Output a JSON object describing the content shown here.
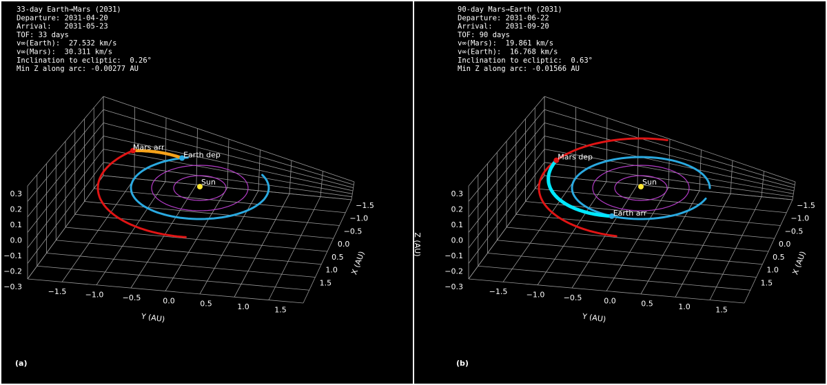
{
  "panels": [
    {
      "label": "(a)",
      "info": [
        "33-day Earth→Mars (2031)",
        "Departure: 2031-04-20",
        "Arrival:   2031-05-23",
        "TOF: 33 days",
        "v∞(Earth):  27.532 km/s",
        "v∞(Mars):  30.311 km/s",
        "Inclination to ecliptic:  0.26°",
        "Min Z along arc: -0.00277 AU"
      ],
      "markers": {
        "start": "Earth dep",
        "end": "Mars arr",
        "sun": "Sun"
      },
      "axes": {
        "x_label": "X (AU)",
        "y_label": "Y (AU)",
        "xticks": [
          "−1.5",
          "−1.0",
          "−0.5",
          "0.0",
          "0.5",
          "1.0",
          "1.5"
        ],
        "yticks": [
          "−1.5",
          "−1.0",
          "−0.5",
          "0.0",
          "0.5",
          "1.0",
          "1.5"
        ],
        "zticks": [
          "0.3",
          "0.2",
          "0.1",
          "0.0",
          "−0.1",
          "−0.2",
          "−0.3"
        ]
      }
    },
    {
      "label": "(b)",
      "info": [
        "90-day Mars→Earth (2031)",
        "Departure: 2031-06-22",
        "Arrival:   2031-09-20",
        "TOF: 90 days",
        "v∞(Mars):  19.861 km/s",
        "v∞(Earth):  16.768 km/s",
        "Inclination to ecliptic:  0.63°",
        "Min Z along arc: -0.01566 AU"
      ],
      "markers": {
        "start": "Mars dep",
        "end": "Earth arr",
        "sun": "Sun"
      },
      "axes": {
        "x_label": "X (AU)",
        "y_label": "Y (AU)",
        "z_label": "Z (AU)",
        "xticks": [
          "−1.5",
          "−1.0",
          "−0.5",
          "0.0",
          "0.5",
          "1.0",
          "1.5"
        ],
        "yticks": [
          "−1.5",
          "−1.0",
          "−0.5",
          "0.0",
          "0.5",
          "1.0",
          "1.5"
        ],
        "zticks": [
          "0.3",
          "0.2",
          "0.1",
          "0.0",
          "−0.1",
          "−0.2",
          "−0.3"
        ]
      }
    }
  ]
}
